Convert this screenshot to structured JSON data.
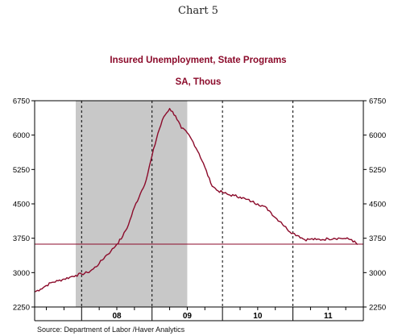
{
  "chart_data": {
    "type": "line",
    "chart_number": "Chart 5",
    "title": "Insured Unemployment, State Programs",
    "subtitle": "SA, Thous",
    "source": "Source:  Department of Labor /Haver Analytics",
    "year_labels": [
      "08",
      "09",
      "10",
      "11"
    ],
    "y_ticks": [
      2250,
      3000,
      3750,
      4500,
      5250,
      6000,
      6750
    ],
    "y_tick_labels": [
      "2250",
      "3000",
      "3750",
      "4500",
      "5250",
      "6000",
      "6750"
    ],
    "ylim": [
      2250,
      6750
    ],
    "x_range": [
      "2007-05",
      "2011-12"
    ],
    "recession_shading": {
      "start": "2007-12",
      "end": "2009-06"
    },
    "reference_line": 3620,
    "grid": "dashed vertical at year boundaries",
    "colors": {
      "line": "#8b0a2a",
      "title": "#8b0a2a",
      "shading": "#c8c8c8",
      "reference": "#8b0a2a"
    },
    "series": [
      {
        "x": [
          "2007-05",
          "2007-06",
          "2007-07",
          "2007-08",
          "2007-09",
          "2007-10",
          "2007-11",
          "2007-12",
          "2008-01",
          "2008-02",
          "2008-03",
          "2008-04",
          "2008-05",
          "2008-06",
          "2008-07",
          "2008-08",
          "2008-09",
          "2008-10",
          "2008-11",
          "2008-12",
          "2009-01",
          "2009-02",
          "2009-03",
          "2009-04",
          "2009-05",
          "2009-06",
          "2009-07",
          "2009-08",
          "2009-09",
          "2009-10",
          "2009-11",
          "2009-12",
          "2010-01",
          "2010-02",
          "2010-03",
          "2010-04",
          "2010-05",
          "2010-06",
          "2010-07",
          "2010-08",
          "2010-09",
          "2010-10",
          "2010-11",
          "2010-12",
          "2011-01",
          "2011-02",
          "2011-03",
          "2011-04",
          "2011-05",
          "2011-06",
          "2011-07",
          "2011-08",
          "2011-09",
          "2011-10",
          "2011-11",
          "2011-12"
        ],
        "values": [
          2580,
          2640,
          2720,
          2790,
          2820,
          2860,
          2900,
          2940,
          2970,
          3000,
          3080,
          3200,
          3350,
          3470,
          3620,
          3790,
          4050,
          4430,
          4720,
          5020,
          5550,
          6040,
          6400,
          6580,
          6420,
          6150,
          6050,
          5850,
          5600,
          5300,
          4950,
          4800,
          4750,
          4700,
          4680,
          4650,
          4600,
          4550,
          4500,
          4450,
          4350,
          4200,
          4100,
          3950,
          3860,
          3800,
          3720,
          3730,
          3720,
          3720,
          3740,
          3750,
          3750,
          3740,
          3720,
          3610
        ]
      }
    ]
  }
}
